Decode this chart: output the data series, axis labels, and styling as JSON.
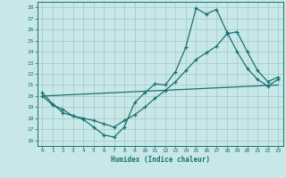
{
  "xlabel": "Humidex (Indice chaleur)",
  "xlim": [
    -0.5,
    23.5
  ],
  "ylim": [
    15.5,
    28.5
  ],
  "yticks": [
    16,
    17,
    18,
    19,
    20,
    21,
    22,
    23,
    24,
    25,
    26,
    27,
    28
  ],
  "xticks": [
    0,
    1,
    2,
    3,
    4,
    5,
    6,
    7,
    8,
    9,
    10,
    11,
    12,
    13,
    14,
    15,
    16,
    17,
    18,
    19,
    20,
    21,
    22,
    23
  ],
  "bg_color": "#c8e8e8",
  "line_color": "#1a7070",
  "grid_color": "#a0c8c8",
  "series1": {
    "x": [
      0,
      1,
      2,
      3,
      4,
      5,
      6,
      7,
      8,
      9,
      10,
      11,
      12,
      13,
      14,
      15,
      16,
      17,
      18,
      19,
      20,
      21,
      22,
      23
    ],
    "y": [
      20.3,
      19.3,
      18.5,
      18.2,
      17.9,
      17.2,
      16.5,
      16.3,
      17.2,
      19.4,
      20.3,
      21.1,
      21.0,
      22.2,
      24.4,
      27.9,
      27.4,
      27.8,
      25.8,
      24.0,
      22.5,
      21.5,
      20.9,
      21.5
    ]
  },
  "series2": {
    "x": [
      0,
      1,
      2,
      3,
      4,
      5,
      6,
      7,
      8,
      9,
      10,
      11,
      12,
      13,
      14,
      15,
      16,
      17,
      18,
      19,
      20,
      21,
      22,
      23
    ],
    "y": [
      20.0,
      19.2,
      18.8,
      18.2,
      18.0,
      17.8,
      17.5,
      17.2,
      17.8,
      18.3,
      19.0,
      19.8,
      20.5,
      21.3,
      22.3,
      23.3,
      23.9,
      24.5,
      25.6,
      25.8,
      24.0,
      22.3,
      21.3,
      21.7
    ]
  },
  "series3": {
    "x": [
      0,
      23
    ],
    "y": [
      20.0,
      21.0
    ]
  }
}
